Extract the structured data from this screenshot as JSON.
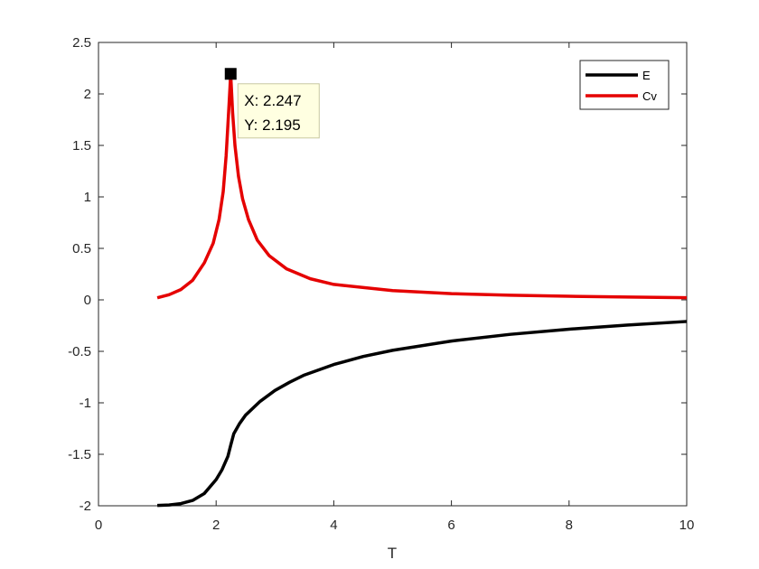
{
  "chart_data": {
    "type": "line",
    "xlabel": "T",
    "ylabel": "",
    "xlim": [
      0,
      10
    ],
    "ylim": [
      -2,
      2.5
    ],
    "xticks": [
      "0",
      "2",
      "4",
      "6",
      "8",
      "10"
    ],
    "yticks": [
      "-2",
      "-1.5",
      "-1",
      "-0.5",
      "0",
      "0.5",
      "1",
      "1.5",
      "2",
      "2.5"
    ],
    "grid": false,
    "legend_position": "top-right",
    "series": [
      {
        "name": "E",
        "color": "#000000",
        "points": [
          [
            1.0,
            -1.997
          ],
          [
            1.2,
            -1.992
          ],
          [
            1.4,
            -1.979
          ],
          [
            1.6,
            -1.948
          ],
          [
            1.8,
            -1.88
          ],
          [
            2.0,
            -1.746
          ],
          [
            2.1,
            -1.65
          ],
          [
            2.2,
            -1.52
          ],
          [
            2.247,
            -1.414
          ],
          [
            2.3,
            -1.3
          ],
          [
            2.4,
            -1.2
          ],
          [
            2.5,
            -1.12
          ],
          [
            2.75,
            -0.985
          ],
          [
            3.0,
            -0.88
          ],
          [
            3.25,
            -0.8
          ],
          [
            3.5,
            -0.73
          ],
          [
            4.0,
            -0.628
          ],
          [
            4.5,
            -0.55
          ],
          [
            5.0,
            -0.49
          ],
          [
            6.0,
            -0.4
          ],
          [
            7.0,
            -0.335
          ],
          [
            8.0,
            -0.285
          ],
          [
            9.0,
            -0.245
          ],
          [
            10.0,
            -0.21
          ]
        ]
      },
      {
        "name": "Cv",
        "color": "#e50000",
        "points": [
          [
            1.0,
            0.02
          ],
          [
            1.2,
            0.05
          ],
          [
            1.4,
            0.1
          ],
          [
            1.6,
            0.19
          ],
          [
            1.8,
            0.36
          ],
          [
            1.95,
            0.55
          ],
          [
            2.05,
            0.78
          ],
          [
            2.12,
            1.05
          ],
          [
            2.17,
            1.4
          ],
          [
            2.2,
            1.7
          ],
          [
            2.22,
            1.9
          ],
          [
            2.235,
            2.06
          ],
          [
            2.247,
            2.195
          ],
          [
            2.26,
            2.05
          ],
          [
            2.28,
            1.82
          ],
          [
            2.32,
            1.5
          ],
          [
            2.38,
            1.2
          ],
          [
            2.45,
            0.98
          ],
          [
            2.55,
            0.78
          ],
          [
            2.7,
            0.58
          ],
          [
            2.9,
            0.43
          ],
          [
            3.2,
            0.3
          ],
          [
            3.6,
            0.205
          ],
          [
            4.0,
            0.15
          ],
          [
            5.0,
            0.09
          ],
          [
            6.0,
            0.06
          ],
          [
            7.0,
            0.045
          ],
          [
            8.0,
            0.035
          ],
          [
            9.0,
            0.027
          ],
          [
            10.0,
            0.021
          ]
        ]
      }
    ],
    "annotation": {
      "x": 2.247,
      "y": 2.195,
      "line1": "X: 2.247",
      "line2": "Y: 2.195"
    }
  }
}
